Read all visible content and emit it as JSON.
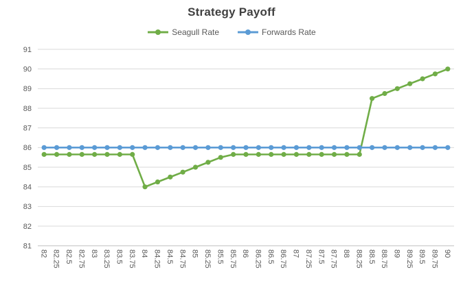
{
  "chart": {
    "title": "Strategy Payoff"
  },
  "legend": {
    "items": [
      {
        "label": "Seagull Rate",
        "color": "#70AD47"
      },
      {
        "label": "Forwards Rate",
        "color": "#5B9BD5"
      }
    ]
  },
  "chart_data": {
    "type": "line",
    "title": "Strategy Payoff",
    "categories": [
      "82",
      "82.25",
      "82.5",
      "82.75",
      "83",
      "83.25",
      "83.5",
      "83.75",
      "84",
      "84.25",
      "84.5",
      "84.75",
      "85",
      "85.25",
      "85.5",
      "85.75",
      "86",
      "86.25",
      "86.5",
      "86.75",
      "87",
      "87.25",
      "87.5",
      "87.75",
      "88",
      "88.25",
      "88.5",
      "88.75",
      "89",
      "89.25",
      "89.5",
      "89.75",
      "90"
    ],
    "series": [
      {
        "name": "Seagull Rate",
        "color": "#70AD47",
        "values": [
          85.65,
          85.65,
          85.65,
          85.65,
          85.65,
          85.65,
          85.65,
          85.65,
          84,
          84.25,
          84.5,
          84.75,
          85,
          85.25,
          85.5,
          85.65,
          85.65,
          85.65,
          85.65,
          85.65,
          85.65,
          85.65,
          85.65,
          85.65,
          85.65,
          85.65,
          88.5,
          88.75,
          89,
          89.25,
          89.5,
          89.75,
          90
        ]
      },
      {
        "name": "Forwards Rate",
        "color": "#5B9BD5",
        "values": [
          86,
          86,
          86,
          86,
          86,
          86,
          86,
          86,
          86,
          86,
          86,
          86,
          86,
          86,
          86,
          86,
          86,
          86,
          86,
          86,
          86,
          86,
          86,
          86,
          86,
          86,
          86,
          86,
          86,
          86,
          86,
          86,
          86
        ]
      }
    ],
    "ylim": [
      81,
      91
    ],
    "yticks": [
      81,
      82,
      83,
      84,
      85,
      86,
      87,
      88,
      89,
      90,
      91
    ],
    "xlabel": "",
    "ylabel": "",
    "grid": true,
    "legend_position": "top",
    "marker": "circle",
    "x_label_rotation": 90
  },
  "style": {
    "background": "#FFFFFF",
    "grid_color": "#D9D9D9",
    "axis_line_color": "#BFBFBF",
    "tick_label_color": "#595959",
    "title_color": "#404040"
  }
}
